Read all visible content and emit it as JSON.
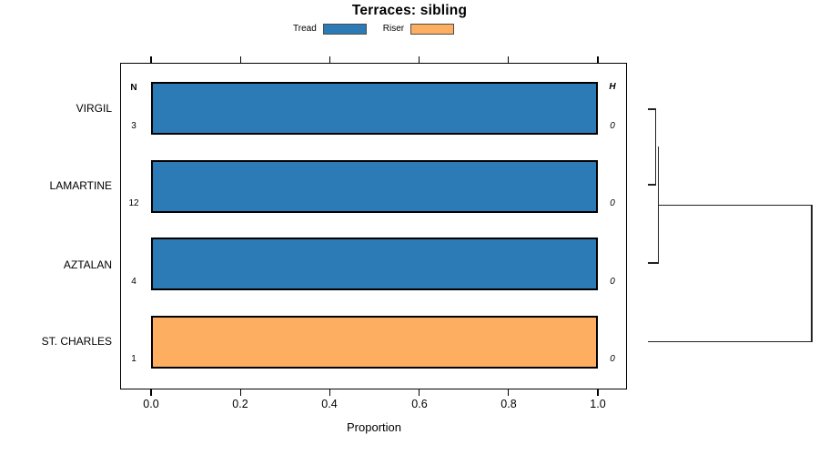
{
  "title": "Terraces: sibling",
  "legend": {
    "items": [
      {
        "label": "Tread",
        "color": "#2c7bb6"
      },
      {
        "label": "Riser",
        "color": "#fdae61"
      }
    ]
  },
  "columns": {
    "n_header": "N",
    "h_header": "H"
  },
  "chart_data": {
    "type": "bar",
    "orientation": "horizontal",
    "stacked": true,
    "title": "Terraces: sibling",
    "xlabel": "Proportion",
    "xlim": [
      0.0,
      1.0
    ],
    "x_ticks": [
      "0.0",
      "0.2",
      "0.4",
      "0.6",
      "0.8",
      "1.0"
    ],
    "grid": false,
    "legend_position": "top-center",
    "series_names": [
      "Tread",
      "Riser"
    ],
    "rows": [
      {
        "label": "VIRGIL",
        "series": "Tread",
        "value": 1.0,
        "n": "3",
        "h": "0",
        "color": "#2c7bb6"
      },
      {
        "label": "LAMARTINE",
        "series": "Tread",
        "value": 1.0,
        "n": "12",
        "h": "0",
        "color": "#2c7bb6"
      },
      {
        "label": "AZTALAN",
        "series": "Tread",
        "value": 1.0,
        "n": "4",
        "h": "0",
        "color": "#2c7bb6"
      },
      {
        "label": "ST. CHARLES",
        "series": "Riser",
        "value": 1.0,
        "n": "1",
        "h": "0",
        "color": "#fdae61"
      }
    ],
    "dendrogram": {
      "position": "right",
      "merges": [
        {
          "children": [
            "VIRGIL",
            "LAMARTINE"
          ],
          "relative_height": 0.04
        },
        {
          "children": [
            "VIRGIL+LAMARTINE",
            "AZTALAN"
          ],
          "relative_height": 0.06
        },
        {
          "children": [
            "VIRGIL+LAMARTINE+AZTALAN",
            "ST. CHARLES"
          ],
          "relative_height": 1.0
        }
      ]
    }
  }
}
